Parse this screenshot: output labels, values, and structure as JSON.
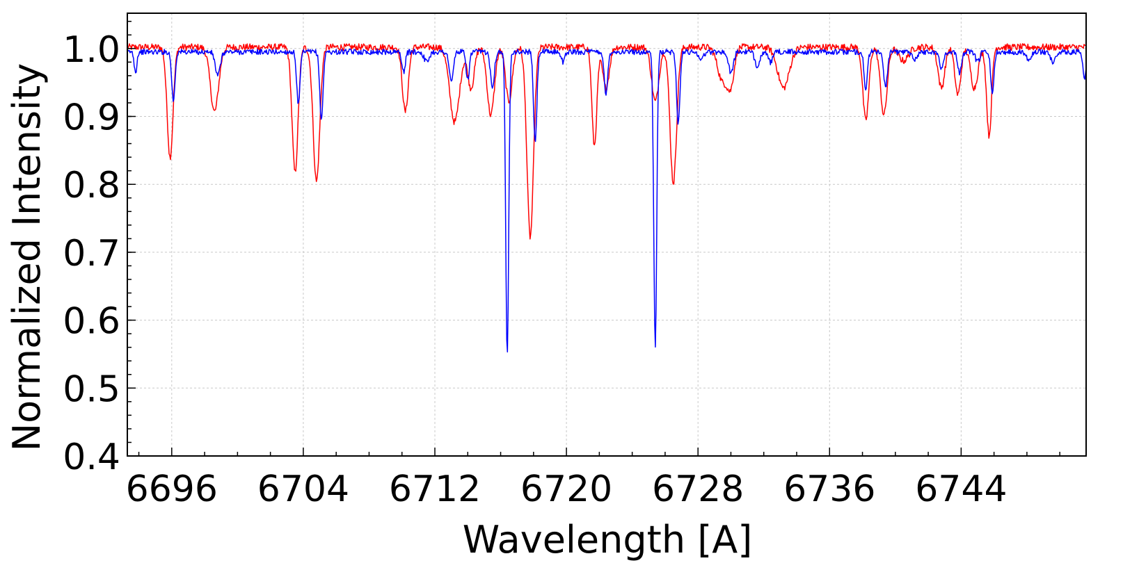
{
  "chart_data": {
    "type": "line",
    "title": "",
    "xlabel": "Wavelength [A]",
    "ylabel": "Normalized Intensity",
    "xlim": [
      6693.3,
      6751.6
    ],
    "ylim": [
      0.4,
      1.052
    ],
    "grid": true,
    "legend": "none",
    "x_ticks": [
      6696,
      6704,
      6712,
      6720,
      6728,
      6736,
      6744
    ],
    "x_tick_labels": [
      "6696",
      "6704",
      "6712",
      "6720",
      "6728",
      "6736",
      "6744"
    ],
    "y_ticks": [
      0.4,
      0.5,
      0.6,
      0.7,
      0.8,
      0.9,
      1.0
    ],
    "y_tick_labels": [
      "0.4",
      "0.5",
      "0.6",
      "0.7",
      "0.8",
      "0.9",
      "1.0"
    ],
    "series": [
      {
        "color": "#ff0000",
        "continuum": 1.002,
        "noise": 0.005,
        "lines": [
          [
            6695.9,
            0.162,
            0.18
          ],
          [
            6698.6,
            0.095,
            0.25
          ],
          [
            6703.5,
            0.185,
            0.18
          ],
          [
            6704.8,
            0.198,
            0.2
          ],
          [
            6710.2,
            0.095,
            0.18
          ],
          [
            6713.2,
            0.11,
            0.3
          ],
          [
            6714.2,
            0.06,
            0.2
          ],
          [
            6715.4,
            0.1,
            0.22
          ],
          [
            6716.5,
            0.08,
            0.2
          ],
          [
            6717.8,
            0.28,
            0.2
          ],
          [
            6721.7,
            0.145,
            0.15
          ],
          [
            6722.4,
            0.06,
            0.2
          ],
          [
            6726.5,
            0.2,
            0.2
          ],
          [
            6725.4,
            0.08,
            0.22
          ],
          [
            6729.5,
            0.05,
            0.3
          ],
          [
            6730.0,
            0.05,
            0.2
          ],
          [
            6733.2,
            0.06,
            0.35
          ],
          [
            6738.2,
            0.108,
            0.18
          ],
          [
            6739.3,
            0.1,
            0.2
          ],
          [
            6742.8,
            0.06,
            0.2
          ],
          [
            6743.8,
            0.07,
            0.18
          ],
          [
            6744.8,
            0.06,
            0.22
          ],
          [
            6745.7,
            0.13,
            0.15
          ],
          [
            6740.5,
            0.02,
            0.3
          ]
        ]
      },
      {
        "color": "#0000ff",
        "continuum": 0.995,
        "noise": 0.004,
        "lines": [
          [
            6693.8,
            0.03,
            0.08
          ],
          [
            6696.1,
            0.072,
            0.1
          ],
          [
            6698.8,
            0.035,
            0.15
          ],
          [
            6703.7,
            0.078,
            0.1
          ],
          [
            6705.1,
            0.1,
            0.1
          ],
          [
            6710.1,
            0.03,
            0.1
          ],
          [
            6711.5,
            0.015,
            0.15
          ],
          [
            6713.0,
            0.045,
            0.12
          ],
          [
            6714.0,
            0.04,
            0.1
          ],
          [
            6715.5,
            0.05,
            0.12
          ],
          [
            6716.4,
            0.445,
            0.09
          ],
          [
            6718.1,
            0.135,
            0.1
          ],
          [
            6719.8,
            0.015,
            0.1
          ],
          [
            6722.4,
            0.065,
            0.1
          ],
          [
            6725.4,
            0.435,
            0.09
          ],
          [
            6726.8,
            0.105,
            0.1
          ],
          [
            6728.2,
            0.01,
            0.15
          ],
          [
            6730.0,
            0.03,
            0.15
          ],
          [
            6731.6,
            0.02,
            0.15
          ],
          [
            6732.4,
            0.015,
            0.15
          ],
          [
            6738.2,
            0.055,
            0.1
          ],
          [
            6739.4,
            0.05,
            0.12
          ],
          [
            6741.2,
            0.01,
            0.15
          ],
          [
            6742.8,
            0.025,
            0.12
          ],
          [
            6743.9,
            0.03,
            0.12
          ],
          [
            6745.0,
            0.015,
            0.12
          ],
          [
            6745.9,
            0.06,
            0.1
          ],
          [
            6748.1,
            0.01,
            0.15
          ],
          [
            6749.6,
            0.015,
            0.15
          ],
          [
            6751.5,
            0.04,
            0.1
          ]
        ]
      }
    ]
  }
}
